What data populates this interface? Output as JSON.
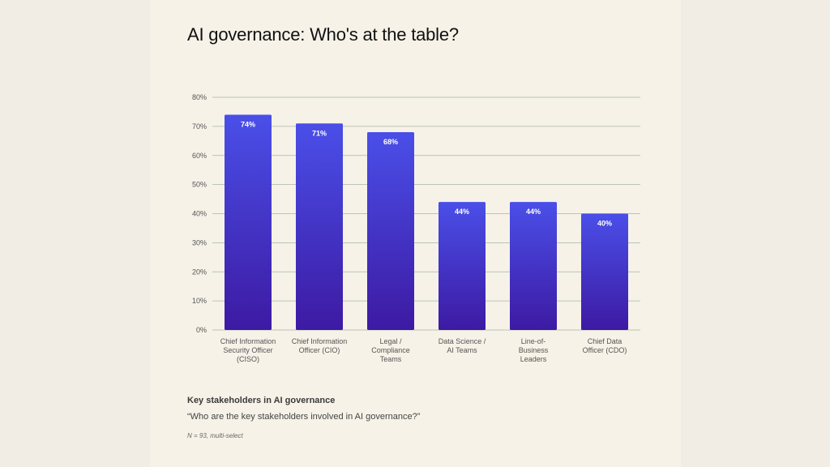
{
  "title": "AI governance: Who's at the table?",
  "footer": {
    "heading": "Key stakeholders in AI governance",
    "question": "“Who are the key stakeholders involved in AI governance?”",
    "note": "N = 93, multi-select"
  },
  "colors": {
    "bar_top": "#4a4fe8",
    "bar_bottom": "#3d1aa3",
    "gridline": "#a9b5a6"
  },
  "chart_data": {
    "type": "bar",
    "title": "AI governance: Who's at the table?",
    "xlabel": "",
    "ylabel": "",
    "ylim": [
      0,
      80
    ],
    "yticks": [
      "0%",
      "10%",
      "20%",
      "30%",
      "40%",
      "50%",
      "60%",
      "70%",
      "80%"
    ],
    "categories": [
      [
        "Chief Information",
        "Security Officer",
        "(CISO)"
      ],
      [
        "Chief Information",
        "Officer (CIO)"
      ],
      [
        "Legal /",
        "Compliance",
        "Teams"
      ],
      [
        "Data Science /",
        "AI Teams"
      ],
      [
        "Line-of-",
        "Business",
        "Leaders"
      ],
      [
        "Chief Data",
        "Officer (CDO)"
      ]
    ],
    "values": [
      74,
      71,
      68,
      44,
      44,
      40
    ],
    "value_labels": [
      "74%",
      "71%",
      "68%",
      "44%",
      "44%",
      "40%"
    ],
    "grid": true,
    "legend": "none"
  }
}
